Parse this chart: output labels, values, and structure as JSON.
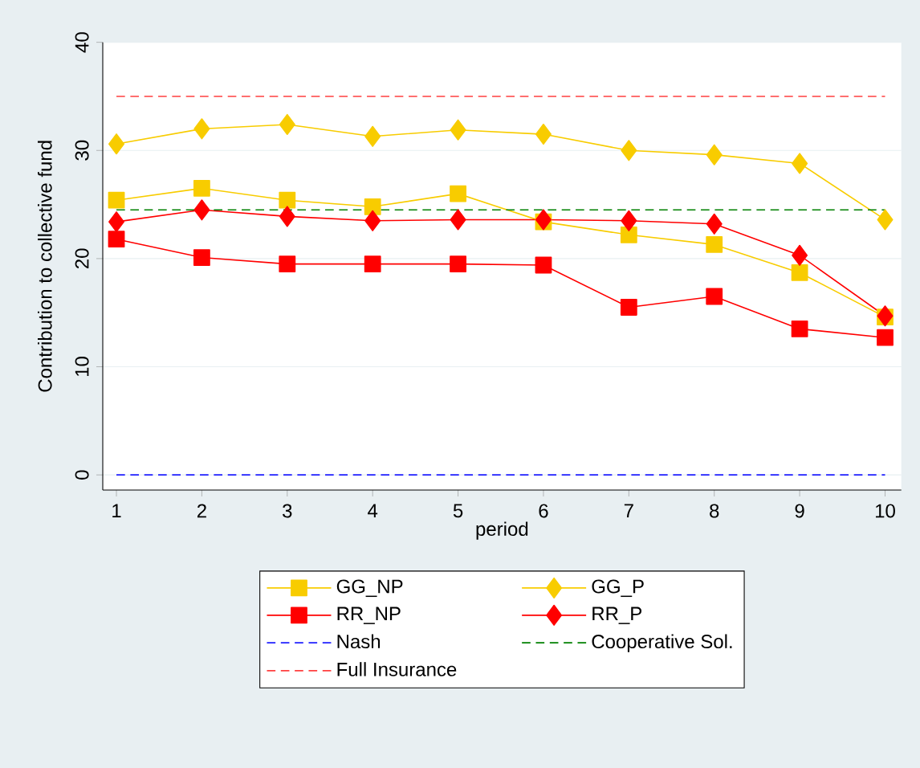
{
  "chart_data": {
    "type": "line",
    "xlabel": "period",
    "ylabel": "Contribution to collective fund",
    "x": [
      1,
      2,
      3,
      4,
      5,
      6,
      7,
      8,
      9,
      10
    ],
    "xlim": [
      0.84,
      10.19
    ],
    "ylim": [
      -1.4,
      40
    ],
    "xticks": [
      1,
      2,
      3,
      4,
      5,
      6,
      7,
      8,
      9,
      10
    ],
    "yticks": [
      0,
      10,
      20,
      30,
      40
    ],
    "grid": "y",
    "legend": "bottom",
    "series": [
      {
        "name": "GG_NP",
        "color": "#f8cc00",
        "marker": "square",
        "values": [
          25.4,
          26.5,
          25.4,
          24.8,
          26.0,
          23.4,
          22.2,
          21.3,
          18.7,
          14.6
        ]
      },
      {
        "name": "GG_P",
        "color": "#f8cc00",
        "marker": "diamond",
        "values": [
          30.6,
          32.0,
          32.4,
          31.3,
          31.9,
          31.5,
          30.0,
          29.6,
          28.8,
          23.6
        ]
      },
      {
        "name": "RR_NP",
        "color": "#ff0000",
        "marker": "square",
        "values": [
          21.8,
          20.1,
          19.5,
          19.5,
          19.5,
          19.4,
          15.5,
          16.5,
          13.5,
          12.7
        ]
      },
      {
        "name": "RR_P",
        "color": "#ff0000",
        "marker": "diamond",
        "values": [
          23.4,
          24.5,
          23.9,
          23.5,
          23.6,
          23.6,
          23.5,
          23.2,
          20.3,
          14.7
        ]
      }
    ],
    "ref_lines": [
      {
        "axis": "y",
        "value": 0,
        "label": "Nash",
        "color": "#2020ff",
        "line_style": "dashed"
      },
      {
        "axis": "y",
        "value": 24.5,
        "label": "Cooperative Sol.",
        "color": "#008000",
        "line_style": "dashed"
      },
      {
        "axis": "y",
        "value": 35,
        "label": "Full Insurance",
        "color": "#ff4040",
        "line_style": "dashed"
      }
    ]
  }
}
